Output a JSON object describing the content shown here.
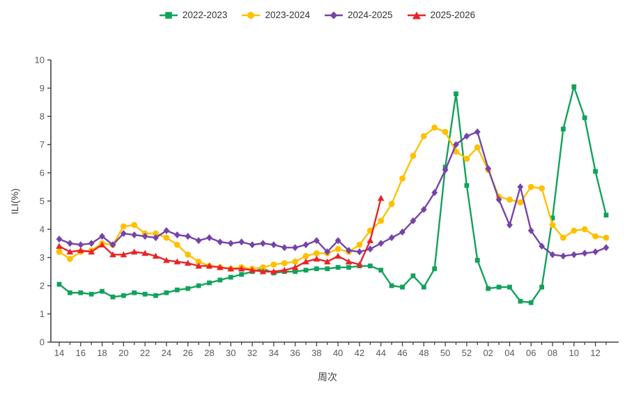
{
  "chart_data": {
    "type": "line",
    "title": "",
    "xlabel": "周次",
    "ylabel": "ILI(%)",
    "ylim": [
      0,
      10
    ],
    "y_ticks": [
      0,
      1,
      2,
      3,
      4,
      5,
      6,
      7,
      8,
      9,
      10
    ],
    "grid": false,
    "legend_position": "top",
    "label_every": 2,
    "categories": [
      "14",
      "15",
      "16",
      "17",
      "18",
      "19",
      "20",
      "21",
      "22",
      "23",
      "24",
      "25",
      "26",
      "27",
      "28",
      "29",
      "30",
      "31",
      "32",
      "33",
      "34",
      "35",
      "36",
      "37",
      "38",
      "39",
      "40",
      "41",
      "42",
      "43",
      "44",
      "45",
      "46",
      "47",
      "48",
      "49",
      "50",
      "51",
      "52",
      "01",
      "02",
      "03",
      "04",
      "05",
      "06",
      "07",
      "08",
      "09",
      "10",
      "11",
      "12",
      "13"
    ],
    "series": [
      {
        "name": "2022-2023",
        "marker": "square",
        "color": "#12A25A",
        "values": [
          2.05,
          1.75,
          1.75,
          1.7,
          1.8,
          1.6,
          1.65,
          1.75,
          1.7,
          1.65,
          1.75,
          1.85,
          1.9,
          2.0,
          2.1,
          2.2,
          2.3,
          2.4,
          2.5,
          2.6,
          2.45,
          2.5,
          2.5,
          2.55,
          2.6,
          2.6,
          2.65,
          2.65,
          2.7,
          2.7,
          2.55,
          2.0,
          1.95,
          2.35,
          1.95,
          2.6,
          6.2,
          8.8,
          5.55,
          2.9,
          1.9,
          1.95,
          1.95,
          1.45,
          1.4,
          1.95,
          4.4,
          7.55,
          9.05,
          7.95,
          6.05,
          4.5
        ]
      },
      {
        "name": "2023-2024",
        "marker": "circle",
        "color": "#FFC000",
        "values": [
          3.2,
          2.95,
          3.2,
          3.25,
          3.5,
          3.45,
          4.1,
          4.15,
          3.85,
          3.85,
          3.7,
          3.45,
          3.1,
          2.85,
          2.7,
          2.65,
          2.6,
          2.65,
          2.6,
          2.65,
          2.75,
          2.8,
          2.85,
          3.05,
          3.15,
          3.15,
          3.3,
          3.2,
          3.45,
          3.95,
          4.3,
          4.9,
          5.8,
          6.6,
          7.3,
          7.6,
          7.45,
          6.75,
          6.5,
          6.9,
          6.1,
          5.15,
          5.05,
          4.95,
          5.5,
          5.45,
          4.15,
          3.7,
          3.95,
          4.0,
          3.75,
          3.7
        ]
      },
      {
        "name": "2024-2025",
        "marker": "diamond",
        "color": "#7444A8",
        "values": [
          3.65,
          3.5,
          3.45,
          3.5,
          3.75,
          3.45,
          3.85,
          3.8,
          3.75,
          3.7,
          3.95,
          3.8,
          3.75,
          3.6,
          3.7,
          3.55,
          3.5,
          3.55,
          3.45,
          3.5,
          3.45,
          3.35,
          3.35,
          3.45,
          3.6,
          3.2,
          3.6,
          3.25,
          3.2,
          3.3,
          3.5,
          3.7,
          3.9,
          4.3,
          4.7,
          5.3,
          6.1,
          7.0,
          7.3,
          7.45,
          6.15,
          5.05,
          4.15,
          5.5,
          3.95,
          3.4,
          3.1,
          3.05,
          3.1,
          3.15,
          3.2,
          3.35
        ]
      },
      {
        "name": "2025-2026",
        "marker": "triangle",
        "color": "#E82428",
        "values": [
          3.4,
          3.2,
          3.25,
          3.2,
          3.45,
          3.1,
          3.1,
          3.2,
          3.15,
          3.05,
          2.9,
          2.85,
          2.8,
          2.7,
          2.7,
          2.65,
          2.6,
          2.6,
          2.55,
          2.5,
          2.5,
          2.55,
          2.65,
          2.85,
          2.95,
          2.85,
          3.05,
          2.85,
          2.75,
          3.6,
          5.1,
          null,
          null,
          null,
          null,
          null,
          null,
          null,
          null,
          null,
          null,
          null,
          null,
          null,
          null,
          null,
          null,
          null,
          null,
          null,
          null,
          null
        ]
      }
    ],
    "colors": {
      "axis": "#404040",
      "tick_label": "#595959",
      "axis_title": "#404040",
      "legend_text": "#333333",
      "background": "#FFFFFF"
    }
  }
}
